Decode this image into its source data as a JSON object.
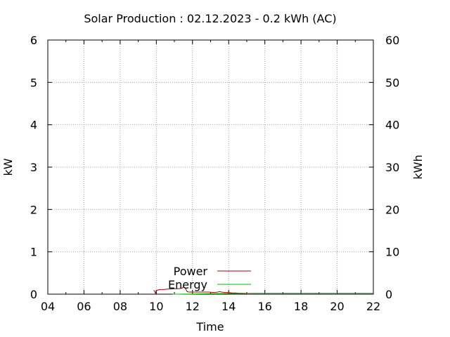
{
  "chart_data": {
    "type": "line",
    "title": "Solar Production : 02.12.2023 - 0.2 kWh (AC)",
    "xlabel": "Time",
    "ylabel": "kW",
    "y2label": "kWh",
    "xlim": [
      4,
      22
    ],
    "ylim": [
      0,
      6
    ],
    "y2lim": [
      0,
      60
    ],
    "x_ticks": [
      4,
      6,
      8,
      10,
      12,
      14,
      16,
      18,
      20,
      22
    ],
    "x_tick_labels": [
      "04",
      "06",
      "08",
      "10",
      "12",
      "14",
      "16",
      "18",
      "20",
      "22"
    ],
    "y_ticks": [
      0,
      1,
      2,
      3,
      4,
      5,
      6
    ],
    "y_tick_labels": [
      "0",
      "1",
      "2",
      "3",
      "4",
      "5",
      "6"
    ],
    "y2_ticks": [
      0,
      10,
      20,
      30,
      40,
      50,
      60
    ],
    "y2_tick_labels": [
      "0",
      "10",
      "20",
      "30",
      "40",
      "50",
      "60"
    ],
    "grid": true,
    "legend_position": "bottom-center",
    "series": [
      {
        "name": "Power",
        "color": "#aa0000",
        "axis": "left",
        "x": [
          9.85,
          9.9,
          9.95,
          10.0,
          10.05,
          10.1,
          10.2,
          10.4,
          10.6,
          10.8,
          11.0,
          11.2,
          11.4,
          11.5,
          11.6,
          11.65,
          11.7,
          11.8,
          12.0,
          12.3,
          12.6,
          12.9,
          13.2,
          13.4,
          13.5,
          13.6,
          13.8,
          14.0,
          14.2,
          14.4,
          14.6,
          14.8,
          15.0,
          15.1
        ],
        "y": [
          0.09,
          0.08,
          0.02,
          0.08,
          0.09,
          0.1,
          0.11,
          0.11,
          0.12,
          0.12,
          0.13,
          0.13,
          0.14,
          0.17,
          0.15,
          0.1,
          0.06,
          0.05,
          0.05,
          0.05,
          0.05,
          0.05,
          0.04,
          0.05,
          0.06,
          0.05,
          0.04,
          0.04,
          0.03,
          0.03,
          0.02,
          0.02,
          0.01,
          0.0
        ]
      },
      {
        "name": "Energy",
        "color": "#00bb00",
        "axis": "right",
        "x": [
          10.9,
          11.5,
          12.0,
          12.5,
          13.0,
          13.5,
          14.0,
          14.5,
          15.0,
          15.2,
          16.0,
          18.0,
          20.0,
          22.0
        ],
        "y": [
          0.0,
          0.02,
          0.05,
          0.08,
          0.11,
          0.14,
          0.16,
          0.18,
          0.19,
          0.2,
          0.2,
          0.2,
          0.2,
          0.2
        ]
      }
    ]
  }
}
